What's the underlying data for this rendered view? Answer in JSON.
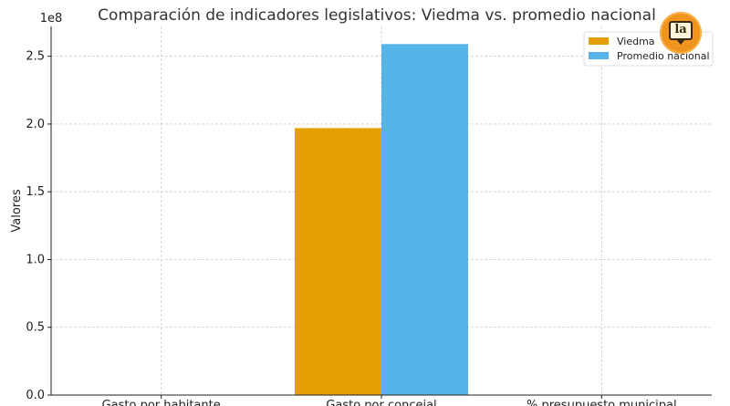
{
  "chart_data": {
    "type": "bar",
    "title": "Comparación de indicadores legislativos: Viedma vs. promedio nacional",
    "xlabel": "",
    "ylabel": "Valores",
    "scale_label": "1e8",
    "categories": [
      "Gasto por habitante",
      "Gasto por concejal",
      "% presupuesto municipal"
    ],
    "series": [
      {
        "name": "Viedma",
        "color": "#e69f00",
        "values": [
          0,
          197000000,
          0
        ]
      },
      {
        "name": "Promedio nacional",
        "color": "#56b4e9",
        "values": [
          0,
          259000000,
          0
        ]
      }
    ],
    "ylim": [
      0,
      272000000
    ],
    "yticks": [
      0,
      50000000,
      100000000,
      150000000,
      200000000,
      250000000
    ],
    "ytick_labels": [
      "0.0",
      "0.5",
      "1.0",
      "1.5",
      "2.0",
      "2.5"
    ],
    "grid": true,
    "legend_position": "top-right"
  },
  "logo": {
    "text": "la",
    "color": "#f0941e"
  }
}
